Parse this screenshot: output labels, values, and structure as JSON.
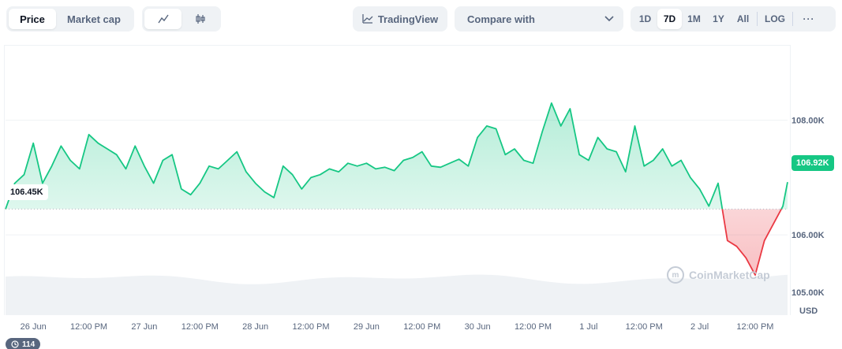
{
  "toolbar": {
    "metric_tabs": [
      {
        "label": "Price",
        "active": true
      },
      {
        "label": "Market cap",
        "active": false
      }
    ],
    "chart_types": [
      {
        "icon": "line-chart-icon",
        "active": true
      },
      {
        "icon": "candlestick-icon",
        "active": false
      }
    ],
    "tradingview_label": "TradingView",
    "compare_label": "Compare with",
    "ranges": [
      {
        "label": "1D",
        "active": false
      },
      {
        "label": "7D",
        "active": true
      },
      {
        "label": "1M",
        "active": false
      },
      {
        "label": "1Y",
        "active": false
      },
      {
        "label": "All",
        "active": false
      }
    ],
    "log_label": "LOG",
    "more_label": "···"
  },
  "chart_data": {
    "type": "line",
    "currency": "USD",
    "reference_price_label": "106.45K",
    "reference_price": 106450,
    "last_price_label": "106.92K",
    "last_price": 106920,
    "y_ticks": [
      {
        "value": 108000,
        "label": "108.00K"
      },
      {
        "value": 106000,
        "label": "106.00K"
      },
      {
        "value": 105000,
        "label": "105.00K"
      }
    ],
    "y_range": [
      104600,
      109300
    ],
    "x_ticks": [
      "26 Jun",
      "12:00 PM",
      "27 Jun",
      "12:00 PM",
      "28 Jun",
      "12:00 PM",
      "29 Jun",
      "12:00 PM",
      "30 Jun",
      "12:00 PM",
      "1 Jul",
      "12:00 PM",
      "2 Jul",
      "12:00 PM"
    ],
    "colors": {
      "up": "#16c784",
      "down": "#ea3943",
      "up_fill": "#16c784",
      "down_fill": "#ea3943"
    },
    "x_range_hours": [
      0,
      169
    ],
    "series": [
      {
        "x_hours": [
          0,
          2,
          4,
          6,
          8,
          10,
          12,
          14,
          16,
          18,
          20,
          22,
          24,
          26,
          28,
          30,
          32,
          34,
          36,
          38,
          40,
          42,
          44,
          46,
          48,
          50,
          52,
          54,
          56,
          58,
          60,
          62,
          64,
          66,
          68,
          70,
          72,
          74,
          76,
          78,
          80,
          82,
          84,
          86,
          88,
          90,
          92,
          94,
          96,
          98,
          100,
          102,
          104,
          106,
          108,
          110,
          112,
          114,
          116,
          118,
          120,
          122,
          124,
          126,
          128,
          130,
          132,
          134,
          136,
          138,
          140,
          142,
          144,
          146,
          148,
          150,
          152,
          154,
          156,
          158,
          160,
          162,
          164,
          166,
          168,
          169
        ],
        "values": [
          106450,
          106900,
          107050,
          107600,
          106900,
          107200,
          107550,
          107300,
          107150,
          107750,
          107600,
          107500,
          107400,
          107150,
          107550,
          107200,
          106900,
          107300,
          107400,
          106800,
          106700,
          106900,
          107200,
          107150,
          107300,
          107450,
          107100,
          106900,
          106750,
          106650,
          107200,
          107050,
          106800,
          107000,
          107050,
          107150,
          107100,
          107250,
          107200,
          107250,
          107150,
          107180,
          107120,
          107300,
          107350,
          107450,
          107200,
          107180,
          107250,
          107320,
          107200,
          107700,
          107900,
          107850,
          107400,
          107500,
          107300,
          107250,
          107800,
          108300,
          107900,
          108200,
          107400,
          107300,
          107700,
          107500,
          107450,
          107100,
          107900,
          107200,
          107300,
          107500,
          107200,
          107300,
          107000,
          106800,
          106500,
          106900,
          105900,
          105800,
          105600,
          105300,
          105900,
          106200,
          106500,
          106920
        ]
      }
    ]
  },
  "labels": {
    "usd": "USD",
    "watermark": "CoinMarketCap",
    "history_count": "114"
  }
}
